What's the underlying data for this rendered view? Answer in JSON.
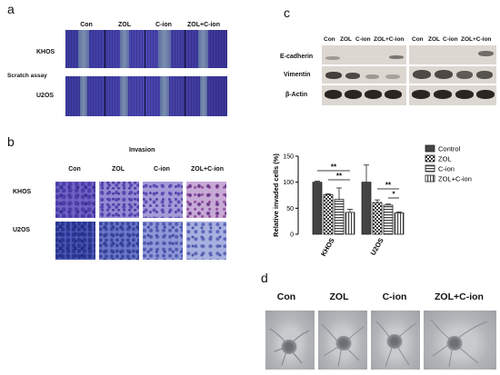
{
  "panels": {
    "a": {
      "letter": "a",
      "conditions": [
        "Con",
        "ZOL",
        "C-ion",
        "ZOL+C-ion"
      ],
      "rows": [
        "KHOS",
        "U2OS"
      ],
      "assay_label": "Scratch assay"
    },
    "b": {
      "letter": "b",
      "title": "Invasion",
      "conditions": [
        "Con",
        "ZOL",
        "C-ion",
        "ZOL+C-ion"
      ],
      "rows": [
        "KHOS",
        "U2OS"
      ]
    },
    "c": {
      "letter": "c",
      "lane_labels": [
        "Con",
        "ZOL",
        "C-ion",
        "ZOL+C-ion",
        "Con",
        "ZOL",
        "C-ion",
        "ZOL+C-ion"
      ],
      "proteins": [
        "E-cadherin",
        "Vimentin",
        "β-Actin"
      ]
    },
    "d": {
      "letter": "d",
      "conditions": [
        "Con",
        "ZOL",
        "C-ion",
        "ZOL+C-ion"
      ]
    }
  },
  "chart_data": {
    "type": "bar",
    "title": "",
    "ylabel": "Relative invaded cells (%)",
    "xlabel": "",
    "categories": [
      "KHOS",
      "U2OS"
    ],
    "ylim": [
      0,
      150
    ],
    "yticks": [
      0,
      50,
      100,
      150
    ],
    "series": [
      {
        "name": "Control",
        "values": [
          100,
          100
        ],
        "errors": [
          2,
          33
        ],
        "fill": "solid-dark"
      },
      {
        "name": "ZOL",
        "values": [
          76,
          61
        ],
        "errors": [
          2,
          5
        ],
        "fill": "checker"
      },
      {
        "name": "C-ion",
        "values": [
          67,
          56
        ],
        "errors": [
          22,
          2
        ],
        "fill": "horizontal-lines"
      },
      {
        "name": "ZOL+C-ion",
        "values": [
          42,
          41
        ],
        "errors": [
          6,
          2
        ],
        "fill": "vertical-lines"
      }
    ],
    "significance": [
      {
        "group": "KHOS",
        "from": "Control",
        "to": "ZOL+C-ion",
        "label": "**"
      },
      {
        "group": "KHOS",
        "from": "ZOL",
        "to": "ZOL+C-ion",
        "label": "**"
      },
      {
        "group": "U2OS",
        "from": "ZOL",
        "to": "ZOL+C-ion",
        "label": "**"
      },
      {
        "group": "U2OS",
        "from": "C-ion",
        "to": "ZOL+C-ion",
        "label": "*"
      }
    ],
    "legend_position": "top-right"
  }
}
